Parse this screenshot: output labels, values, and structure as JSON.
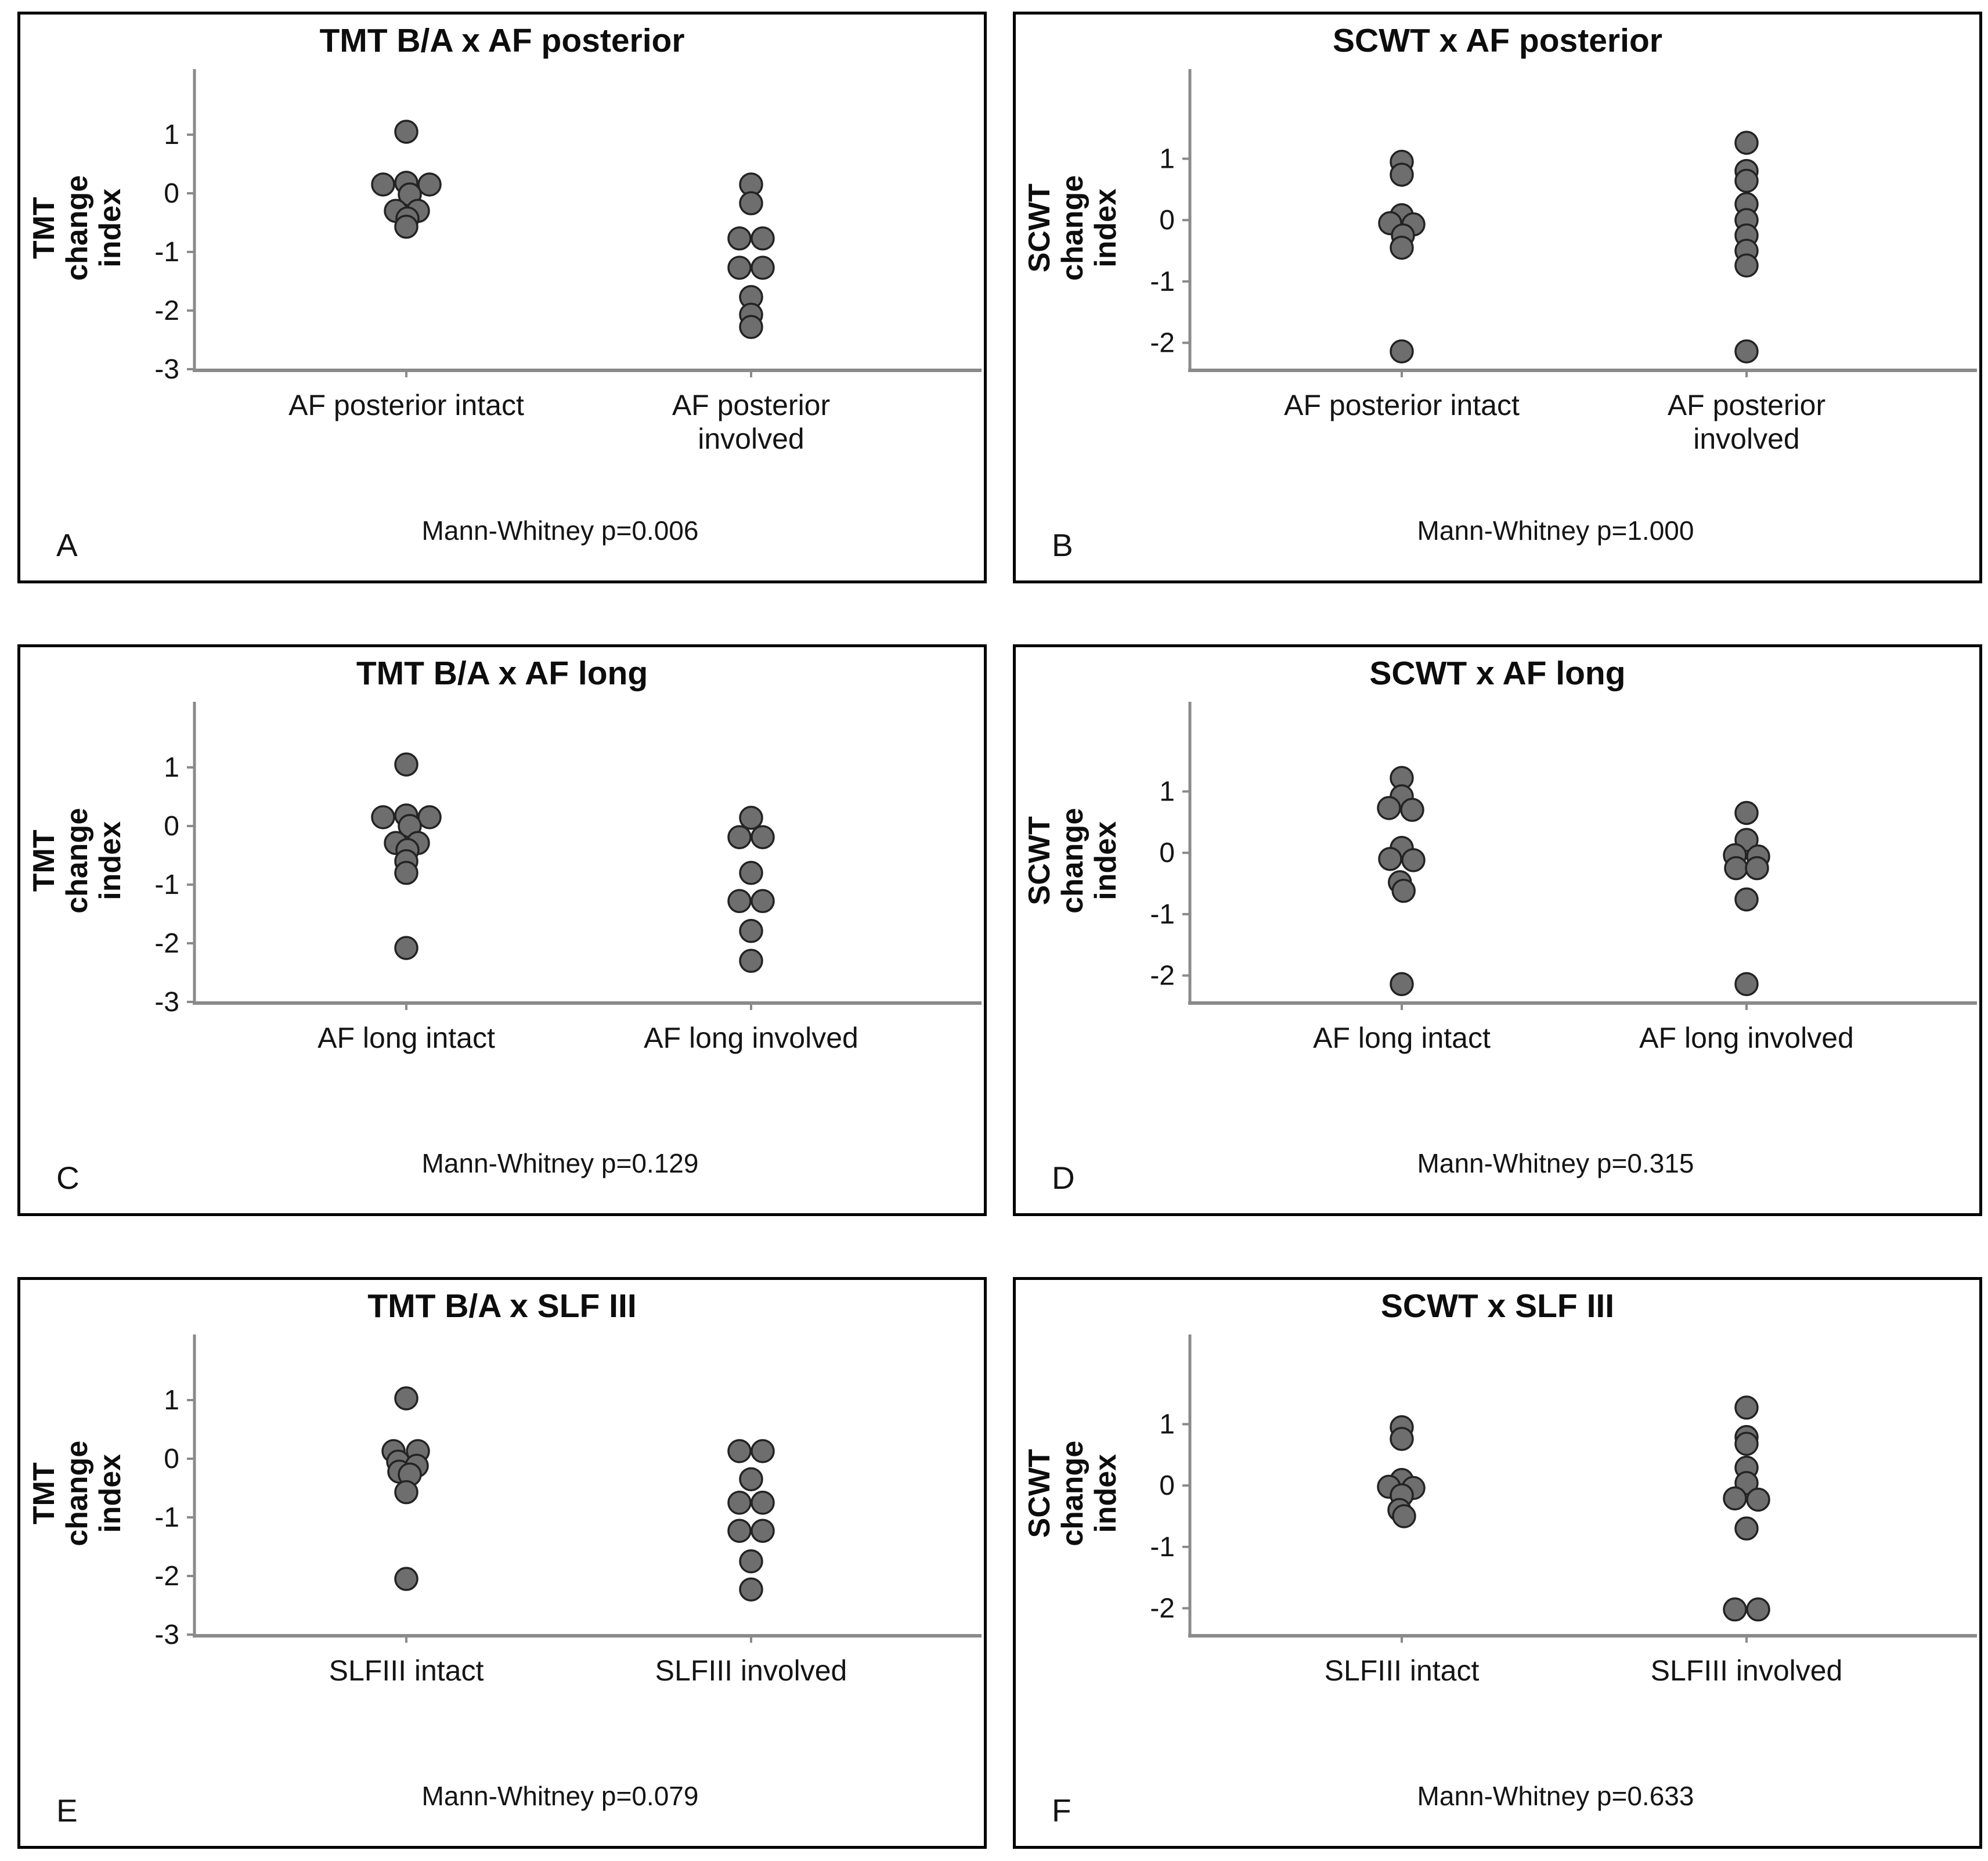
{
  "style": {
    "dot_fill": "#6e6e6e",
    "dot_stroke": "#232323",
    "axis_color": "#8a8a8a",
    "text_color": "#141414",
    "panel_border": "#000000"
  },
  "chart_data": [
    {
      "type": "scatter",
      "letter": "A",
      "title": "TMT B/A x AF posterior",
      "ylabel": "TMT change\nindex",
      "yticks": [
        1,
        0,
        -1,
        -2,
        -3
      ],
      "ylim": [
        -3,
        1.5
      ],
      "grid": false,
      "categories": [
        "AF posterior intact",
        "AF posterior involved"
      ],
      "pvalue": "Mann-Whitney p=0.006",
      "series": [
        {
          "name": "AF posterior intact",
          "points": [
            {
              "y": 1.05,
              "dx": 0
            },
            {
              "y": 0.15,
              "dx": -1.0
            },
            {
              "y": 0.18,
              "dx": 0
            },
            {
              "y": 0.15,
              "dx": 1.0
            },
            {
              "y": -0.02,
              "dx": 0.15
            },
            {
              "y": -0.3,
              "dx": -0.45
            },
            {
              "y": -0.3,
              "dx": 0.5
            },
            {
              "y": -0.43,
              "dx": 0.05
            },
            {
              "y": -0.57,
              "dx": 0
            }
          ]
        },
        {
          "name": "AF posterior involved",
          "points": [
            {
              "y": 0.15,
              "dx": 0
            },
            {
              "y": -0.17,
              "dx": 0
            },
            {
              "y": -0.77,
              "dx": -0.5
            },
            {
              "y": -0.77,
              "dx": 0.5
            },
            {
              "y": -1.27,
              "dx": -0.5
            },
            {
              "y": -1.27,
              "dx": 0.5
            },
            {
              "y": -1.77,
              "dx": 0
            },
            {
              "y": -2.07,
              "dx": 0
            },
            {
              "y": -2.28,
              "dx": 0
            }
          ]
        }
      ]
    },
    {
      "type": "scatter",
      "letter": "B",
      "title": "SCWT x AF posterior",
      "ylabel": "SCWT change\nindex",
      "yticks": [
        1,
        0,
        -1,
        -2
      ],
      "ylim": [
        -2.43,
        1.87
      ],
      "grid": false,
      "categories": [
        "AF posterior intact",
        "AF posterior involved"
      ],
      "pvalue": "Mann-Whitney p=1.000",
      "series": [
        {
          "name": "AF posterior intact",
          "points": [
            {
              "y": 0.95,
              "dx": 0
            },
            {
              "y": 0.74,
              "dx": 0
            },
            {
              "y": 0.08,
              "dx": 0
            },
            {
              "y": -0.05,
              "dx": -0.5
            },
            {
              "y": -0.07,
              "dx": 0.5
            },
            {
              "y": -0.25,
              "dx": 0.05
            },
            {
              "y": -0.45,
              "dx": 0
            },
            {
              "y": -2.14,
              "dx": 0
            }
          ]
        },
        {
          "name": "AF posterior involved",
          "points": [
            {
              "y": 1.26,
              "dx": 0
            },
            {
              "y": 0.8,
              "dx": 0
            },
            {
              "y": 0.64,
              "dx": 0
            },
            {
              "y": 0.26,
              "dx": 0
            },
            {
              "y": 0.0,
              "dx": 0
            },
            {
              "y": -0.25,
              "dx": 0
            },
            {
              "y": -0.5,
              "dx": 0
            },
            {
              "y": -0.74,
              "dx": 0
            },
            {
              "y": -2.14,
              "dx": 0
            }
          ]
        }
      ]
    },
    {
      "type": "scatter",
      "letter": "C",
      "title": "TMT B/A x AF long",
      "ylabel": "TMT change\nindex",
      "yticks": [
        1,
        0,
        -1,
        -2,
        -3
      ],
      "ylim": [
        -3,
        1.5
      ],
      "grid": false,
      "categories": [
        "AF long intact",
        "AF long involved"
      ],
      "pvalue": "Mann-Whitney p=0.129",
      "series": [
        {
          "name": "AF long intact",
          "points": [
            {
              "y": 1.05,
              "dx": 0
            },
            {
              "y": 0.15,
              "dx": -1.0
            },
            {
              "y": 0.18,
              "dx": 0
            },
            {
              "y": 0.15,
              "dx": 1.0
            },
            {
              "y": 0.0,
              "dx": 0.15
            },
            {
              "y": -0.29,
              "dx": -0.45
            },
            {
              "y": -0.29,
              "dx": 0.5
            },
            {
              "y": -0.41,
              "dx": 0.05
            },
            {
              "y": -0.6,
              "dx": 0
            },
            {
              "y": -0.8,
              "dx": 0
            },
            {
              "y": -2.08,
              "dx": 0
            }
          ]
        },
        {
          "name": "AF long involved",
          "points": [
            {
              "y": 0.14,
              "dx": 0
            },
            {
              "y": -0.19,
              "dx": -0.5
            },
            {
              "y": -0.19,
              "dx": 0.5
            },
            {
              "y": -0.8,
              "dx": 0
            },
            {
              "y": -1.28,
              "dx": -0.5
            },
            {
              "y": -1.28,
              "dx": 0.5
            },
            {
              "y": -1.79,
              "dx": 0
            },
            {
              "y": -2.3,
              "dx": 0
            }
          ]
        }
      ]
    },
    {
      "type": "scatter",
      "letter": "D",
      "title": "SCWT x AF long",
      "ylabel": "SCWT change\nindex",
      "yticks": [
        1,
        0,
        -1,
        -2
      ],
      "ylim": [
        -2.43,
        1.87
      ],
      "grid": false,
      "categories": [
        "AF long intact",
        "AF long involved"
      ],
      "pvalue": "Mann-Whitney p=0.315",
      "series": [
        {
          "name": "AF long intact",
          "points": [
            {
              "y": 1.22,
              "dx": 0
            },
            {
              "y": 0.92,
              "dx": 0
            },
            {
              "y": 0.73,
              "dx": -0.55
            },
            {
              "y": 0.7,
              "dx": 0.45
            },
            {
              "y": 0.08,
              "dx": 0
            },
            {
              "y": -0.1,
              "dx": -0.5
            },
            {
              "y": -0.12,
              "dx": 0.5
            },
            {
              "y": -0.48,
              "dx": -0.08
            },
            {
              "y": -0.62,
              "dx": 0.08
            },
            {
              "y": -2.14,
              "dx": 0
            }
          ]
        },
        {
          "name": "AF long involved",
          "points": [
            {
              "y": 0.65,
              "dx": 0
            },
            {
              "y": 0.21,
              "dx": 0
            },
            {
              "y": -0.04,
              "dx": -0.5
            },
            {
              "y": -0.06,
              "dx": 0.5
            },
            {
              "y": -0.25,
              "dx": -0.45
            },
            {
              "y": -0.25,
              "dx": 0.45
            },
            {
              "y": -0.76,
              "dx": 0
            },
            {
              "y": -2.14,
              "dx": 0
            }
          ]
        }
      ]
    },
    {
      "type": "scatter",
      "letter": "E",
      "title": "TMT B/A x SLF III",
      "ylabel": "TMT change\nindex",
      "yticks": [
        1,
        0,
        -1,
        -2,
        -3
      ],
      "ylim": [
        -3,
        1.5
      ],
      "grid": false,
      "categories": [
        "SLFIII intact",
        "SLFIII involved"
      ],
      "pvalue": "Mann-Whitney p=0.079",
      "series": [
        {
          "name": "SLFIII intact",
          "points": [
            {
              "y": 1.03,
              "dx": 0
            },
            {
              "y": 0.13,
              "dx": -0.55
            },
            {
              "y": 0.13,
              "dx": 0.5
            },
            {
              "y": -0.05,
              "dx": -0.35
            },
            {
              "y": -0.12,
              "dx": 0.45
            },
            {
              "y": -0.22,
              "dx": -0.3
            },
            {
              "y": -0.27,
              "dx": 0.15
            },
            {
              "y": -0.57,
              "dx": 0
            },
            {
              "y": -2.05,
              "dx": 0
            }
          ]
        },
        {
          "name": "SLFIII involved",
          "points": [
            {
              "y": 0.13,
              "dx": -0.5
            },
            {
              "y": 0.13,
              "dx": 0.5
            },
            {
              "y": -0.35,
              "dx": 0
            },
            {
              "y": -0.75,
              "dx": -0.5
            },
            {
              "y": -0.75,
              "dx": 0.5
            },
            {
              "y": -1.23,
              "dx": -0.5
            },
            {
              "y": -1.23,
              "dx": 0.5
            },
            {
              "y": -1.75,
              "dx": 0
            },
            {
              "y": -2.23,
              "dx": 0
            }
          ]
        }
      ]
    },
    {
      "type": "scatter",
      "letter": "F",
      "title": "SCWT x SLF III",
      "ylabel": "SCWT change\nindex",
      "yticks": [
        1,
        0,
        -1,
        -2
      ],
      "ylim": [
        -2.43,
        1.87
      ],
      "grid": false,
      "categories": [
        "SLFIII intact",
        "SLFIII involved"
      ],
      "pvalue": "Mann-Whitney p=0.633",
      "series": [
        {
          "name": "SLFIII intact",
          "points": [
            {
              "y": 0.95,
              "dx": 0
            },
            {
              "y": 0.76,
              "dx": 0
            },
            {
              "y": 0.09,
              "dx": 0
            },
            {
              "y": -0.02,
              "dx": -0.55
            },
            {
              "y": -0.04,
              "dx": 0.5
            },
            {
              "y": -0.16,
              "dx": 0
            },
            {
              "y": -0.4,
              "dx": -0.1
            },
            {
              "y": -0.5,
              "dx": 0.1
            }
          ]
        },
        {
          "name": "SLFIII involved",
          "points": [
            {
              "y": 1.27,
              "dx": 0
            },
            {
              "y": 0.79,
              "dx": 0
            },
            {
              "y": 0.68,
              "dx": 0
            },
            {
              "y": 0.29,
              "dx": 0
            },
            {
              "y": 0.04,
              "dx": 0
            },
            {
              "y": -0.21,
              "dx": -0.5
            },
            {
              "y": -0.23,
              "dx": 0.5
            },
            {
              "y": -0.7,
              "dx": 0
            },
            {
              "y": -2.02,
              "dx": -0.5
            },
            {
              "y": -2.02,
              "dx": 0.5
            }
          ]
        }
      ]
    }
  ]
}
